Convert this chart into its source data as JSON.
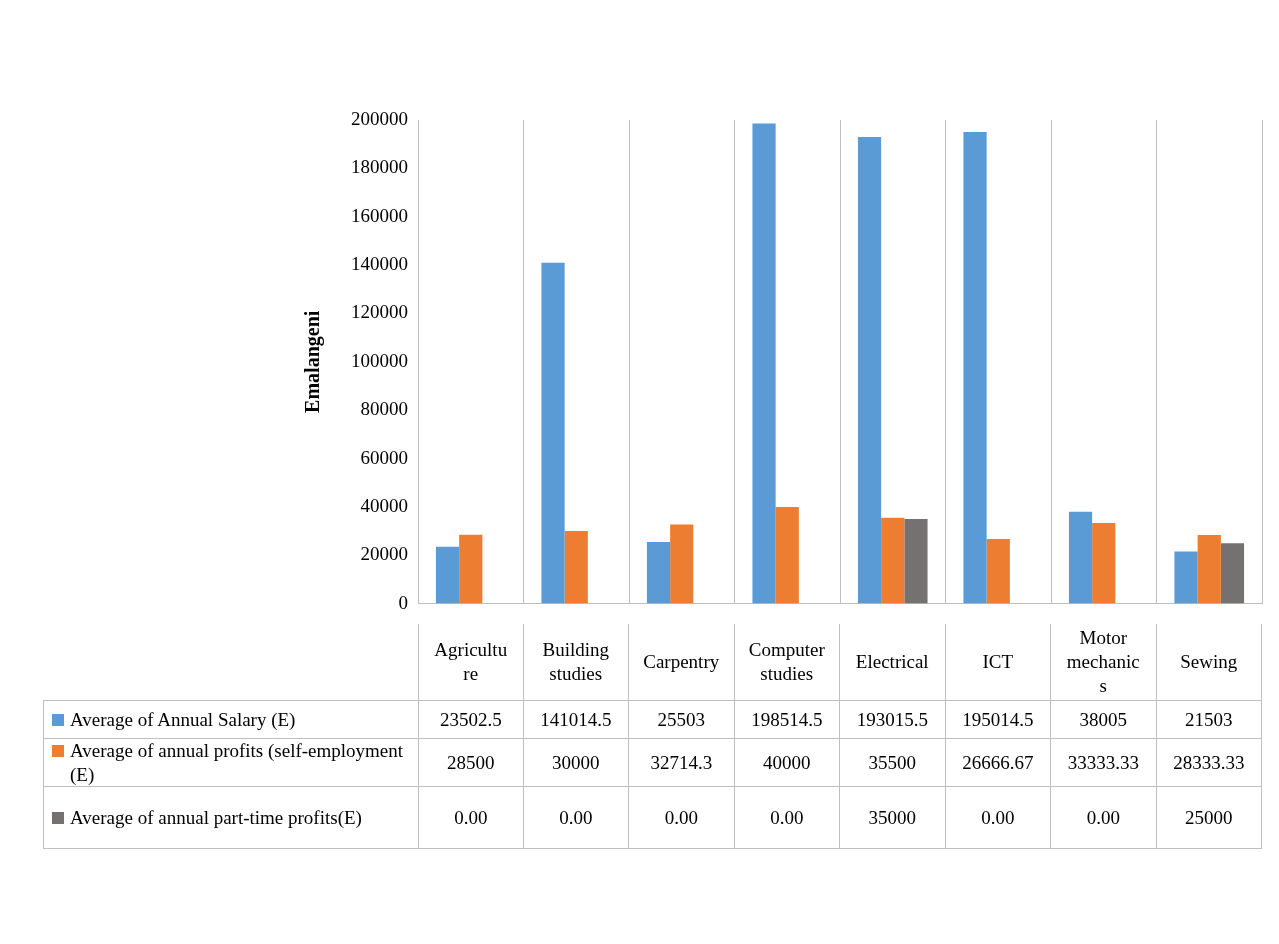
{
  "chart_data": {
    "type": "bar",
    "ylabel": "Emalangeni",
    "categories": [
      "Agriculture",
      "Building studies",
      "Carpentry",
      "Computer studies",
      "Electrical",
      "ICT",
      "Motor mechanics",
      "Sewing"
    ],
    "series": [
      {
        "name": "Average of Annual Salary (E)",
        "color": "#5b9bd5",
        "values": [
          23502.5,
          141014.5,
          25503,
          198514.5,
          193015.5,
          195014.5,
          38005,
          21503
        ],
        "value_labels": [
          "23502.5",
          "141014.5",
          "25503",
          "198514.5",
          "193015.5",
          "195014.5",
          "38005",
          "21503"
        ]
      },
      {
        "name": "Average of annual profits (self-employment (E)",
        "color": "#ed7d31",
        "values": [
          28500,
          30000,
          32714.3,
          40000,
          35500,
          26666.67,
          33333.33,
          28333.33
        ],
        "value_labels": [
          "28500",
          "30000",
          "32714.3",
          "40000",
          "35500",
          "26666.67",
          "33333.33",
          "28333.33"
        ]
      },
      {
        "name": "Average of annual part-time profits(E)",
        "color": "#767171",
        "values": [
          0,
          0,
          0,
          0,
          35000,
          0,
          0,
          25000
        ],
        "value_labels": [
          "0.00",
          "0.00",
          "0.00",
          "0.00",
          "35000",
          "0.00",
          "0.00",
          "25000"
        ]
      }
    ],
    "ylim": [
      0,
      200000
    ],
    "yticks": [
      0,
      20000,
      40000,
      60000,
      80000,
      100000,
      120000,
      140000,
      160000,
      180000,
      200000
    ],
    "grid": "x",
    "legend": "bottom"
  }
}
